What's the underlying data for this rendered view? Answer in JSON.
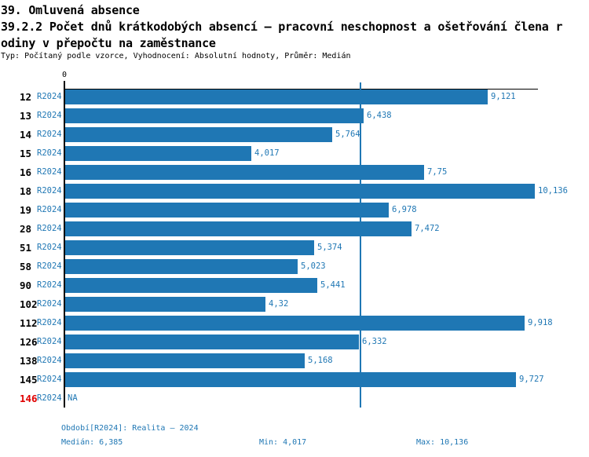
{
  "header": {
    "title_line1": "39. Omluvená absence",
    "title_line2": "39.2.2 Počet dnů krátkodobých absencí – pracovní neschopnost a ošetřování člena r",
    "title_line3": "odiny v přepočtu na zaměstnance",
    "subtitle": "Typ: Počítaný podle vzorce, Vyhodnocení: Absolutní hodnoty, Průměr: Medián"
  },
  "colors": {
    "bar": "#1f77b4",
    "blue_text": "#1f77b4",
    "alert_red": "#e00000",
    "axis": "#000000"
  },
  "chart_data": {
    "type": "bar",
    "orientation": "horizontal",
    "title": "39.2.2 Počet dnů krátkodobých absencí – pracovní neschopnost a ošetřování člena rodiny v přepočtu na zaměstnance",
    "period_label": "R2024",
    "axis_origin_label": "0",
    "xlim": [
      0,
      10.2
    ],
    "grid": false,
    "median_line_value": 6.385,
    "categories": [
      "12",
      "13",
      "14",
      "15",
      "16",
      "18",
      "19",
      "28",
      "51",
      "58",
      "90",
      "102",
      "112",
      "126",
      "138",
      "145",
      "146"
    ],
    "values": [
      9.121,
      6.438,
      5.764,
      4.017,
      7.75,
      10.136,
      6.978,
      7.472,
      5.374,
      5.023,
      5.441,
      4.32,
      9.918,
      6.332,
      5.168,
      9.727,
      null
    ],
    "rows": [
      {
        "category": "12",
        "value": 9.121,
        "label": "9,121",
        "highlight": false
      },
      {
        "category": "13",
        "value": 6.438,
        "label": "6,438",
        "highlight": false
      },
      {
        "category": "14",
        "value": 5.764,
        "label": "5,764",
        "highlight": false
      },
      {
        "category": "15",
        "value": 4.017,
        "label": "4,017",
        "highlight": false
      },
      {
        "category": "16",
        "value": 7.75,
        "label": "7,75",
        "highlight": false
      },
      {
        "category": "18",
        "value": 10.136,
        "label": "10,136",
        "highlight": false
      },
      {
        "category": "19",
        "value": 6.978,
        "label": "6,978",
        "highlight": false
      },
      {
        "category": "28",
        "value": 7.472,
        "label": "7,472",
        "highlight": false
      },
      {
        "category": "51",
        "value": 5.374,
        "label": "5,374",
        "highlight": false
      },
      {
        "category": "58",
        "value": 5.023,
        "label": "5,023",
        "highlight": false
      },
      {
        "category": "90",
        "value": 5.441,
        "label": "5,441",
        "highlight": false
      },
      {
        "category": "102",
        "value": 4.32,
        "label": "4,32",
        "highlight": false
      },
      {
        "category": "112",
        "value": 9.918,
        "label": "9,918",
        "highlight": false
      },
      {
        "category": "126",
        "value": 6.332,
        "label": "6,332",
        "highlight": false
      },
      {
        "category": "138",
        "value": 5.168,
        "label": "5,168",
        "highlight": false
      },
      {
        "category": "145",
        "value": 9.727,
        "label": "9,727",
        "highlight": false
      },
      {
        "category": "146",
        "value": null,
        "label": "NA",
        "highlight": true
      }
    ]
  },
  "footer": {
    "period_info": "Období[R2024]: Realita – 2024",
    "median": "Medián: 6,385",
    "min": "Min: 4,017",
    "max": "Max: 10,136"
  }
}
